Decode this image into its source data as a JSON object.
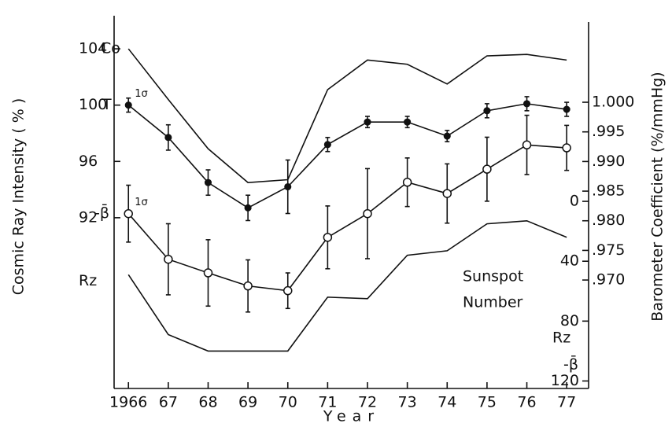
{
  "chart_data": {
    "type": "line",
    "xlabel": "Year",
    "ylabel": "Cosmic Ray Intensity ( % )",
    "y2label": "Barometer Coefficient (%/mmHg)",
    "y2sublabel": "-β̄",
    "y3label": "Rz",
    "annotations": [
      "Sunspot",
      "Number"
    ],
    "x": [
      1966,
      1967,
      1968,
      1969,
      1970,
      1971,
      1972,
      1973,
      1974,
      1975,
      1976,
      1977
    ],
    "xlim": [
      1965.64,
      1977.55
    ],
    "xticks": [
      1966,
      {
        "value": 1967,
        "label": "67"
      },
      {
        "value": 1968,
        "label": "68"
      },
      {
        "value": 1969,
        "label": "69"
      },
      {
        "value": 1970,
        "label": "70"
      },
      {
        "value": 1971,
        "label": "71"
      },
      {
        "value": 1972,
        "label": "72"
      },
      {
        "value": 1973,
        "label": "73"
      },
      {
        "value": 1974,
        "label": "74"
      },
      {
        "value": 1975,
        "label": "75"
      },
      {
        "value": 1976,
        "label": "76"
      },
      {
        "value": 1977,
        "label": "77"
      }
    ],
    "ylim": [
      79.87,
      106.35
    ],
    "yticks": [
      104,
      100,
      96,
      92
    ],
    "y2lim": [
      0.9517,
      1.0146
    ],
    "y2ticks": [
      {
        "value": 1.0,
        "label": "1.000"
      },
      {
        "value": 0.995,
        "label": ".995"
      },
      {
        "value": 0.99,
        "label": ".990"
      },
      {
        "value": 0.985,
        "label": ".985"
      },
      {
        "value": 0.98,
        "label": ".980"
      },
      {
        "value": 0.975,
        "label": ".975"
      },
      {
        "value": 0.97,
        "label": ".970"
      }
    ],
    "y3lim": [
      125,
      -124
    ],
    "y3ticks": [
      0,
      40,
      80,
      120
    ],
    "color": "#111111",
    "series": [
      {
        "name": "Co",
        "axis": "y",
        "values": [
          104.0,
          100.4,
          96.9,
          94.5,
          94.7,
          101.1,
          103.2,
          102.9,
          101.5,
          103.5,
          103.6,
          103.2
        ]
      },
      {
        "name": "T",
        "axis": "y",
        "marker": "filled",
        "error_label": "1σ",
        "values": [
          100.0,
          97.7,
          94.5,
          92.7,
          94.2,
          97.2,
          98.8,
          98.8,
          97.8,
          99.6,
          100.1,
          99.7
        ],
        "errors": [
          0.5,
          0.9,
          0.9,
          0.9,
          1.9,
          0.5,
          0.4,
          0.4,
          0.4,
          0.5,
          0.5,
          0.5
        ]
      },
      {
        "name": "-β̄",
        "axis": "y2",
        "marker": "open",
        "error_label": "1σ",
        "values": [
          0.9812,
          0.9735,
          0.9712,
          0.969,
          0.9682,
          0.9772,
          0.9812,
          0.9865,
          0.9846,
          0.9887,
          0.9928,
          0.9923
        ],
        "errors": [
          0.0048,
          0.006,
          0.0056,
          0.0044,
          0.003,
          0.0053,
          0.0076,
          0.0041,
          0.005,
          0.0054,
          0.005,
          0.0038
        ]
      },
      {
        "name": "Rz",
        "axis": "y3",
        "values": [
          49,
          89,
          100,
          100,
          100,
          64,
          65,
          36,
          33,
          15,
          13,
          24
        ]
      }
    ]
  }
}
